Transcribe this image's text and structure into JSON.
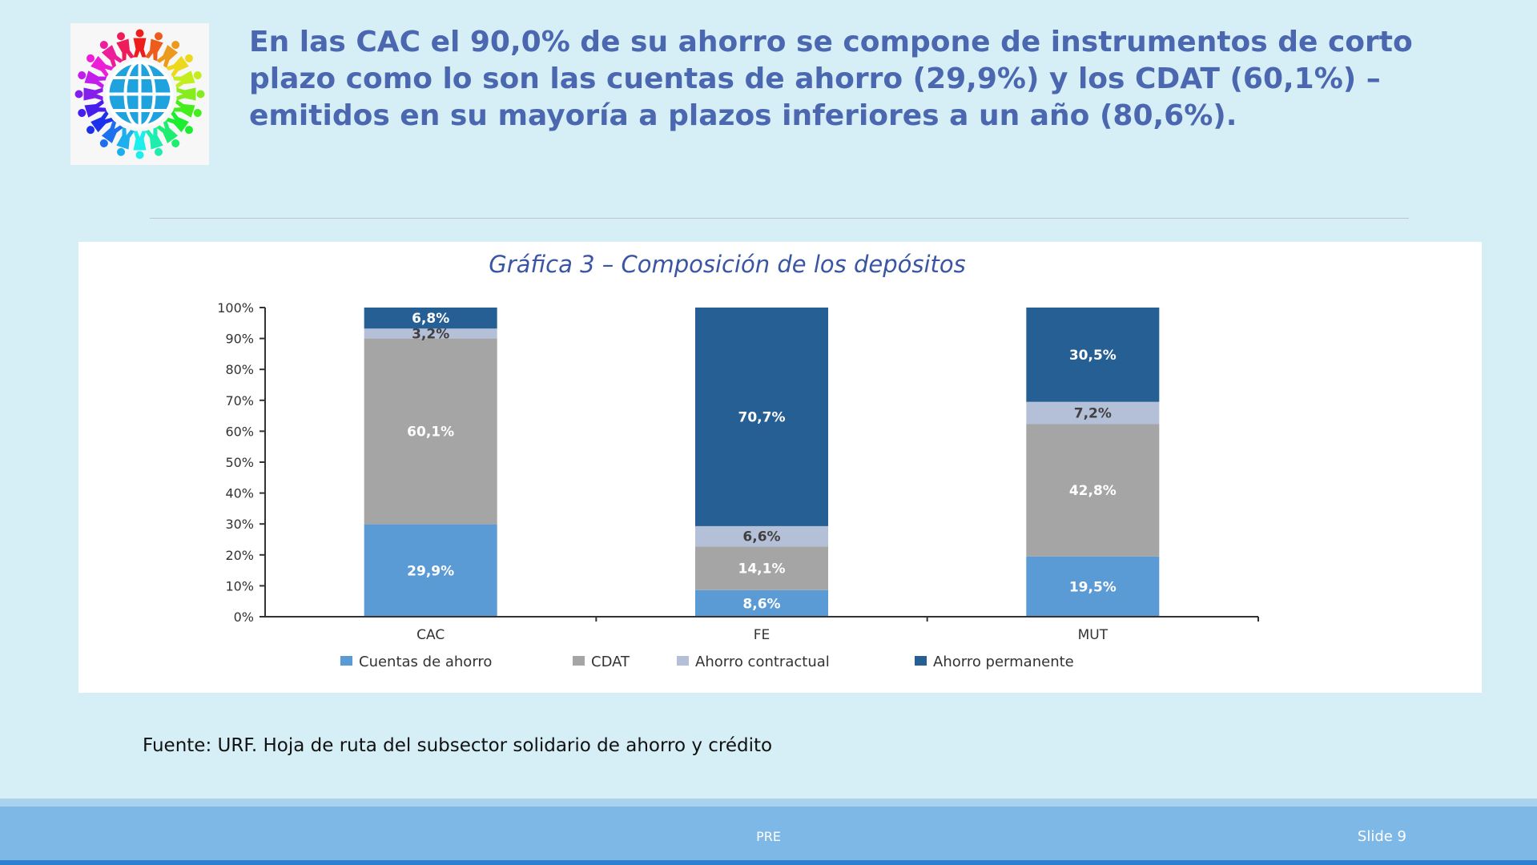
{
  "slide": {
    "title": "En las CAC el 90,0% de su ahorro se compone de instrumentos de corto plazo como lo son las cuentas de ahorro (29,9%) y los CDAT (60,1%) –emitidos en su mayoría a plazos inferiores a un año (80,6%).",
    "source": "Fuente: URF. Hoja de ruta del subsector solidario de ahorro y crédito",
    "footer_center": "PRE",
    "footer_slide": "Slide 9",
    "logo_icon": "globe-people-icon"
  },
  "colors": {
    "background": "#d6eef6",
    "title": "#4a67b0",
    "cuentas": "#5b9bd5",
    "cdat": "#a5a5a5",
    "contractual": "#b4c0d8",
    "permanente": "#265f93"
  },
  "chart_data": {
    "type": "bar",
    "stacked": true,
    "title": "Gráfica 3 – Composición de los depósitos",
    "xlabel": "",
    "ylabel": "",
    "ylim": [
      0,
      100
    ],
    "y_ticks": [
      "0%",
      "10%",
      "20%",
      "30%",
      "40%",
      "50%",
      "60%",
      "70%",
      "80%",
      "90%",
      "100%"
    ],
    "categories": [
      "CAC",
      "FE",
      "MUT"
    ],
    "legend_position": "bottom",
    "grid": false,
    "series": [
      {
        "name": "Cuentas de ahorro",
        "color": "#5b9bd5",
        "values": [
          29.9,
          8.6,
          19.5
        ],
        "labels": [
          "29,9%",
          "8,6%",
          "19,5%"
        ],
        "label_color": "#ffffff"
      },
      {
        "name": "CDAT",
        "color": "#a5a5a5",
        "values": [
          60.1,
          14.1,
          42.8
        ],
        "labels": [
          "60,1%",
          "14,1%",
          "42,8%"
        ],
        "label_color": "#ffffff"
      },
      {
        "name": "Ahorro contractual",
        "color": "#b4c0d8",
        "values": [
          3.2,
          6.6,
          7.2
        ],
        "labels": [
          "3,2%",
          "6,6%",
          "7,2%"
        ],
        "label_color": "#404040"
      },
      {
        "name": "Ahorro permanente",
        "color": "#265f93",
        "values": [
          6.8,
          70.7,
          30.5
        ],
        "labels": [
          "6,8%",
          "70,7%",
          "30,5%"
        ],
        "label_color": "#ffffff"
      }
    ]
  }
}
